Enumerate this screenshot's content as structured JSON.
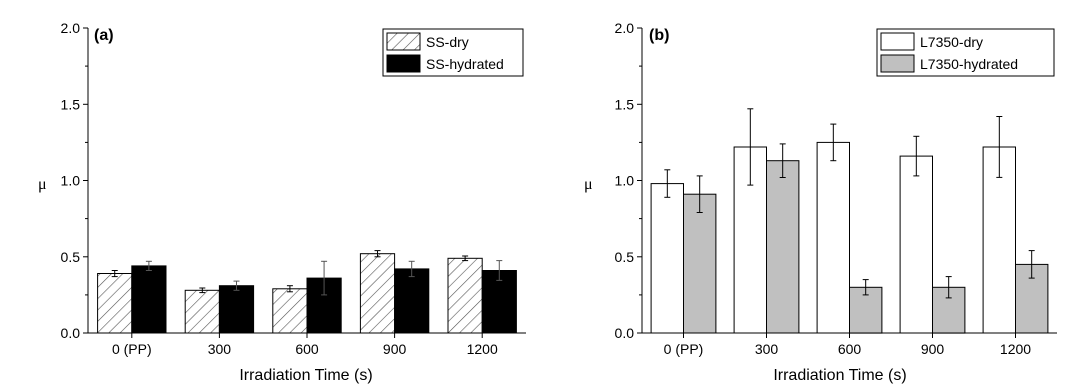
{
  "chart_data": [
    {
      "type": "bar",
      "panel_label": "(a)",
      "xlabel": "Irradiation Time (s)",
      "ylabel": "μ",
      "ylim": [
        0,
        2.0
      ],
      "yticks": [
        "0.0",
        "0.5",
        "1.0",
        "1.5",
        "2.0"
      ],
      "categories": [
        "0 (PP)",
        "300",
        "600",
        "900",
        "1200"
      ],
      "legend_position": "top-right",
      "series": [
        {
          "name": "SS-dry",
          "values": [
            0.39,
            0.28,
            0.29,
            0.52,
            0.49
          ],
          "errors": [
            0.02,
            0.015,
            0.02,
            0.02,
            0.015
          ],
          "fill": "hatch",
          "color": "#ffffff"
        },
        {
          "name": "SS-hydrated",
          "values": [
            0.44,
            0.31,
            0.36,
            0.42,
            0.41
          ],
          "errors": [
            0.03,
            0.03,
            0.11,
            0.05,
            0.065
          ],
          "fill": "solid",
          "color": "#000000"
        }
      ]
    },
    {
      "type": "bar",
      "panel_label": "(b)",
      "xlabel": "Irradiation Time (s)",
      "ylabel": "μ",
      "ylim": [
        0,
        2.0
      ],
      "yticks": [
        "0.0",
        "0.5",
        "1.0",
        "1.5",
        "2.0"
      ],
      "categories": [
        "0 (PP)",
        "300",
        "600",
        "900",
        "1200"
      ],
      "legend_position": "top-right",
      "series": [
        {
          "name": "L7350-dry",
          "values": [
            0.98,
            1.22,
            1.25,
            1.16,
            1.22
          ],
          "errors": [
            0.09,
            0.25,
            0.12,
            0.13,
            0.2
          ],
          "fill": "solid",
          "color": "#ffffff"
        },
        {
          "name": "L7350-hydrated",
          "values": [
            0.91,
            1.13,
            0.3,
            0.3,
            0.45
          ],
          "errors": [
            0.12,
            0.11,
            0.05,
            0.07,
            0.09
          ],
          "fill": "solid",
          "color": "#c0c0c0"
        }
      ]
    }
  ]
}
